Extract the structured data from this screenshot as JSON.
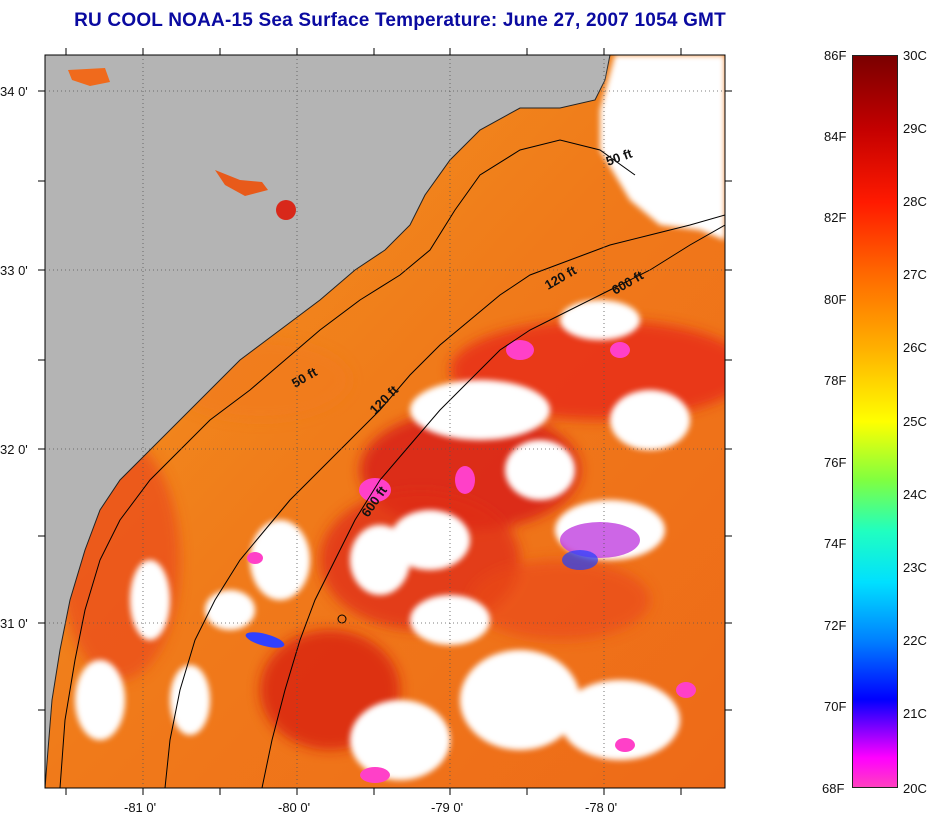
{
  "title": "RU COOL  NOAA-15  Sea Surface Temperature:  June 27, 2007 1054 GMT",
  "map": {
    "lat_labels": [
      "34 0'",
      "33 0'",
      "32 0'",
      "31 0'"
    ],
    "lon_labels": [
      "-81 0'",
      "-80 0'",
      "-79 0'",
      "-78 0'"
    ],
    "contours": [
      {
        "label": "50 ft"
      },
      {
        "label": "120 ft"
      },
      {
        "label": "600 ft"
      }
    ],
    "colors": {
      "land": "#b4b4b4",
      "cloud": "#ffffff",
      "shelf": "#f08a1c",
      "warm": "#e8301a",
      "cool": "#ff30c0"
    }
  },
  "colorbar": {
    "fahrenheit": [
      "86F",
      "84F",
      "82F",
      "80F",
      "78F",
      "76F",
      "74F",
      "72F",
      "70F",
      "68F"
    ],
    "celsius": [
      "30C",
      "29C",
      "28C",
      "27C",
      "26C",
      "25C",
      "24C",
      "23C",
      "22C",
      "21C",
      "20C"
    ]
  }
}
